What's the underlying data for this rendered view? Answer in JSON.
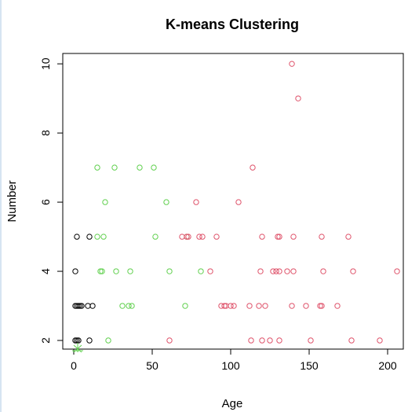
{
  "chart_data": {
    "type": "scatter",
    "title": "K-means Clustering",
    "xlabel": "Age",
    "ylabel": "Number",
    "xlim": [
      -7,
      210
    ],
    "ylim": [
      1.75,
      10.3
    ],
    "x_ticks": [
      0,
      50,
      100,
      150,
      200
    ],
    "y_ticks": [
      2,
      4,
      6,
      8,
      10
    ],
    "grid": false,
    "colors": {
      "black": "#000000",
      "green": "#61D04F",
      "red": "#DF536B"
    },
    "series": [
      {
        "color": "black",
        "points": [
          [
            1,
            2
          ],
          [
            2,
            2
          ],
          [
            3,
            2
          ],
          [
            10,
            2
          ],
          [
            1,
            3
          ],
          [
            2,
            3
          ],
          [
            3,
            3
          ],
          [
            4,
            3
          ],
          [
            5,
            3
          ],
          [
            9,
            3
          ],
          [
            12,
            3
          ],
          [
            1,
            4
          ],
          [
            2,
            5
          ],
          [
            10,
            5
          ]
        ]
      },
      {
        "color": "green",
        "points": [
          [
            22,
            2
          ],
          [
            31,
            3
          ],
          [
            35,
            3
          ],
          [
            37,
            3
          ],
          [
            71,
            3
          ],
          [
            17,
            4
          ],
          [
            18,
            4
          ],
          [
            27,
            4
          ],
          [
            36,
            4
          ],
          [
            61,
            4
          ],
          [
            81,
            4
          ],
          [
            15,
            5
          ],
          [
            19,
            5
          ],
          [
            52,
            5
          ],
          [
            72,
            5
          ],
          [
            20,
            6
          ],
          [
            59,
            6
          ],
          [
            15,
            7
          ],
          [
            26,
            7
          ],
          [
            42,
            7
          ],
          [
            51,
            7
          ]
        ]
      },
      {
        "color": "red",
        "points": [
          [
            61,
            2
          ],
          [
            113,
            2
          ],
          [
            120,
            2
          ],
          [
            125,
            2
          ],
          [
            131,
            2
          ],
          [
            151,
            2
          ],
          [
            177,
            2
          ],
          [
            195,
            2
          ],
          [
            94,
            3
          ],
          [
            96,
            3
          ],
          [
            97,
            3
          ],
          [
            100,
            3
          ],
          [
            102,
            3
          ],
          [
            112,
            3
          ],
          [
            118,
            3
          ],
          [
            122,
            3
          ],
          [
            139,
            3
          ],
          [
            148,
            3
          ],
          [
            157,
            3
          ],
          [
            158,
            3
          ],
          [
            168,
            3
          ],
          [
            87,
            4
          ],
          [
            119,
            4
          ],
          [
            127,
            4
          ],
          [
            129,
            4
          ],
          [
            131,
            4
          ],
          [
            136,
            4
          ],
          [
            140,
            4
          ],
          [
            159,
            4
          ],
          [
            178,
            4
          ],
          [
            206,
            4
          ],
          [
            69,
            5
          ],
          [
            72,
            5
          ],
          [
            73,
            5
          ],
          [
            80,
            5
          ],
          [
            82,
            5
          ],
          [
            91,
            5
          ],
          [
            120,
            5
          ],
          [
            130,
            5
          ],
          [
            131,
            5
          ],
          [
            140,
            5
          ],
          [
            158,
            5
          ],
          [
            175,
            5
          ],
          [
            78,
            6
          ],
          [
            105,
            6
          ],
          [
            114,
            7
          ],
          [
            143,
            9
          ],
          [
            139,
            10
          ]
        ]
      }
    ]
  }
}
